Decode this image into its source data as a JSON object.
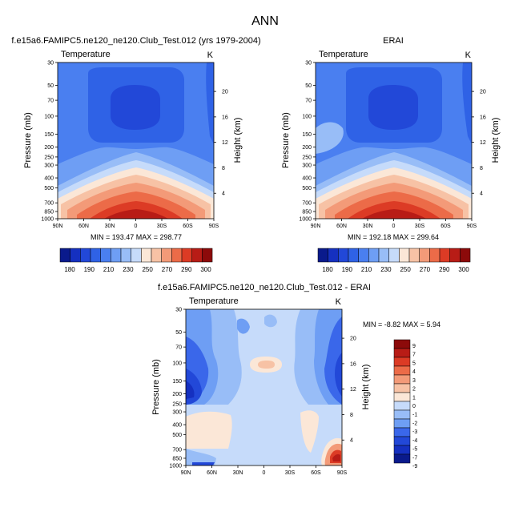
{
  "page_title": "ANN",
  "colors": {
    "temperature_levels": [
      "#0a1a8c",
      "#1530c0",
      "#2248d8",
      "#2f62e6",
      "#4a7ff0",
      "#6e9ef4",
      "#98bdf7",
      "#c6dbfa",
      "#fbe7d7",
      "#f7c2a5",
      "#f39a78",
      "#ec6b48",
      "#dc3b25",
      "#b81c16",
      "#8c0a0a"
    ],
    "diff_levels": [
      "#0a1a8c",
      "#1530c0",
      "#2248d8",
      "#3a67ea",
      "#6e9ef4",
      "#98bdf7",
      "#c6dbfa",
      "#fbe7d7",
      "#f7c2a5",
      "#f39a78",
      "#ec6b48",
      "#dc3b25",
      "#b81c16",
      "#8c0a0a"
    ]
  },
  "chart_data": [
    {
      "type": "contour",
      "id": "model",
      "title": "f.e15a6.FAMIPC5.ne120_ne120.Club_Test.012 (yrs 1979-2004)",
      "subtitle_left": "Temperature",
      "subtitle_right": "K",
      "xlabel": "",
      "ylabel": "Pressure (mb)",
      "ylabel_right": "Height (km)",
      "x_ticks": [
        "90N",
        "60N",
        "30N",
        "0",
        "30S",
        "60S",
        "90S"
      ],
      "y_ticks": [
        "30",
        "50",
        "70",
        "100",
        "150",
        "200",
        "250",
        "300",
        "400",
        "500",
        "700",
        "850",
        "1000"
      ],
      "right_ticks": [
        "20",
        "16",
        "12",
        "8",
        "4"
      ],
      "minmax_label": "MIN = 193.47  MAX = 298.77",
      "min": 193.47,
      "max": 298.77,
      "colorbar_labels": [
        "180",
        "190",
        "210",
        "230",
        "250",
        "270",
        "290",
        "300"
      ]
    },
    {
      "type": "contour",
      "id": "obs",
      "title": "ERAI",
      "subtitle_left": "Temperature",
      "subtitle_right": "K",
      "ylabel": "Pressure (mb)",
      "ylabel_right": "Height (km)",
      "x_ticks": [
        "90N",
        "60N",
        "30N",
        "0",
        "30S",
        "60S",
        "90S"
      ],
      "y_ticks": [
        "30",
        "50",
        "70",
        "100",
        "150",
        "200",
        "250",
        "300",
        "400",
        "500",
        "700",
        "850",
        "1000"
      ],
      "right_ticks": [
        "20",
        "16",
        "12",
        "8",
        "4"
      ],
      "minmax_label": "MIN = 192.18  MAX = 299.64",
      "min": 192.18,
      "max": 299.64,
      "colorbar_labels": [
        "180",
        "190",
        "210",
        "230",
        "250",
        "270",
        "290",
        "300"
      ]
    },
    {
      "type": "contour",
      "id": "diff",
      "title": "f.e15a6.FAMIPC5.ne120_ne120.Club_Test.012 - ERAI",
      "subtitle_left": "Temperature",
      "subtitle_right": "K",
      "ylabel": "Pressure (mb)",
      "ylabel_right": "Height (km)",
      "x_ticks": [
        "90N",
        "60N",
        "30N",
        "0",
        "30S",
        "60S",
        "90S"
      ],
      "y_ticks": [
        "30",
        "50",
        "70",
        "100",
        "150",
        "200",
        "250",
        "300",
        "400",
        "500",
        "700",
        "850",
        "1000"
      ],
      "right_ticks": [
        "20",
        "16",
        "12",
        "8",
        "4"
      ],
      "minmax_label": "MIN = -8.82  MAX =  5.94",
      "min": -8.82,
      "max": 5.94,
      "colorbar_labels": [
        "9",
        "7",
        "5",
        "4",
        "3",
        "2",
        "1",
        "0",
        "-1",
        "-2",
        "-3",
        "-4",
        "-5",
        "-7",
        "-9"
      ]
    }
  ]
}
